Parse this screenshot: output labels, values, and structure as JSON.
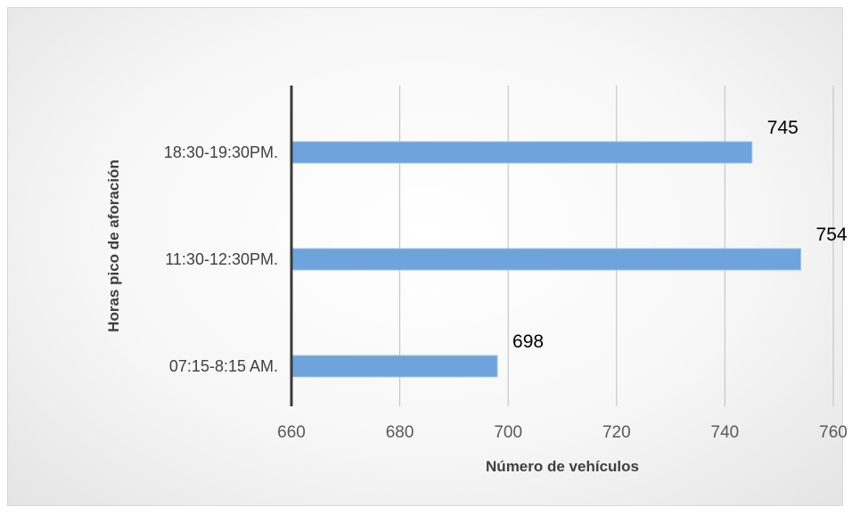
{
  "chart_data": {
    "type": "bar",
    "orientation": "horizontal",
    "title": "",
    "xlabel": "Número de vehículos",
    "ylabel": "Horas pico de aforación",
    "categories": [
      "07:15-8:15 AM.",
      "11:30-12:30PM.",
      "18:30-19:30PM."
    ],
    "values": [
      698,
      754,
      745
    ],
    "data_labels": [
      "698",
      "754",
      "745"
    ],
    "xlim": [
      660,
      760
    ],
    "xticks": [
      "660",
      "680",
      "700",
      "720",
      "740",
      "760"
    ],
    "grid": "vertical",
    "legend": "none",
    "bar_color": "#6fa3dc"
  }
}
